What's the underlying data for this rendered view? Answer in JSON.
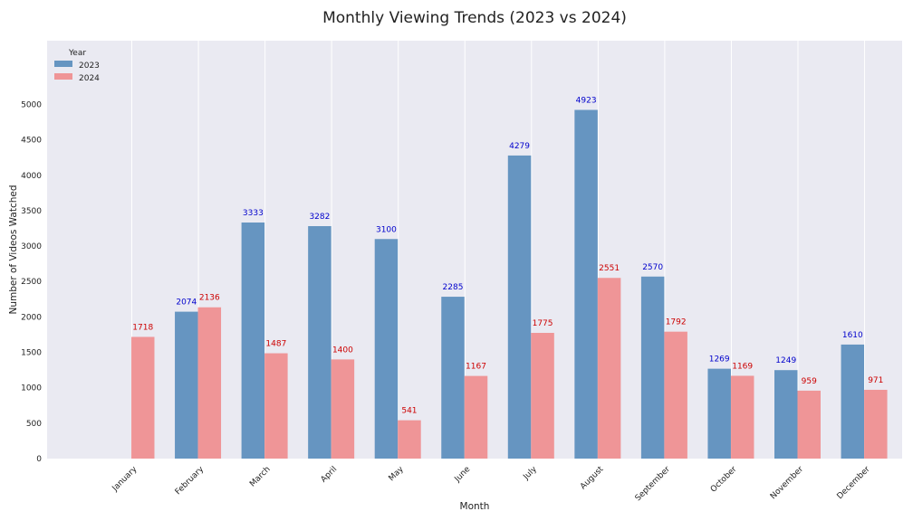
{
  "chart_data": {
    "type": "bar",
    "title": "Monthly Viewing Trends (2023 vs 2024)",
    "xlabel": "Month",
    "ylabel": "Number of Videos Watched",
    "categories": [
      "January",
      "February",
      "March",
      "April",
      "May",
      "June",
      "July",
      "August",
      "September",
      "October",
      "November",
      "December"
    ],
    "series": [
      {
        "name": "2023",
        "color": "#4f86b9",
        "label_color": "#0000cc",
        "values": [
          null,
          2074,
          3333,
          3282,
          3100,
          2285,
          4279,
          4923,
          2570,
          1269,
          1249,
          1610
        ]
      },
      {
        "name": "2024",
        "color": "#f08080",
        "label_color": "#cc0000",
        "values": [
          1718,
          2136,
          1487,
          1400,
          541,
          1167,
          1775,
          2551,
          1792,
          1169,
          959,
          971
        ]
      }
    ],
    "ylim": [
      0,
      5900
    ],
    "yticks": [
      0,
      500,
      1000,
      1500,
      2000,
      2500,
      3000,
      3500,
      4000,
      4500,
      5000
    ],
    "legend": {
      "title": "Year",
      "placement": "top-left"
    },
    "grid": true,
    "background": "#eaeaf2"
  }
}
